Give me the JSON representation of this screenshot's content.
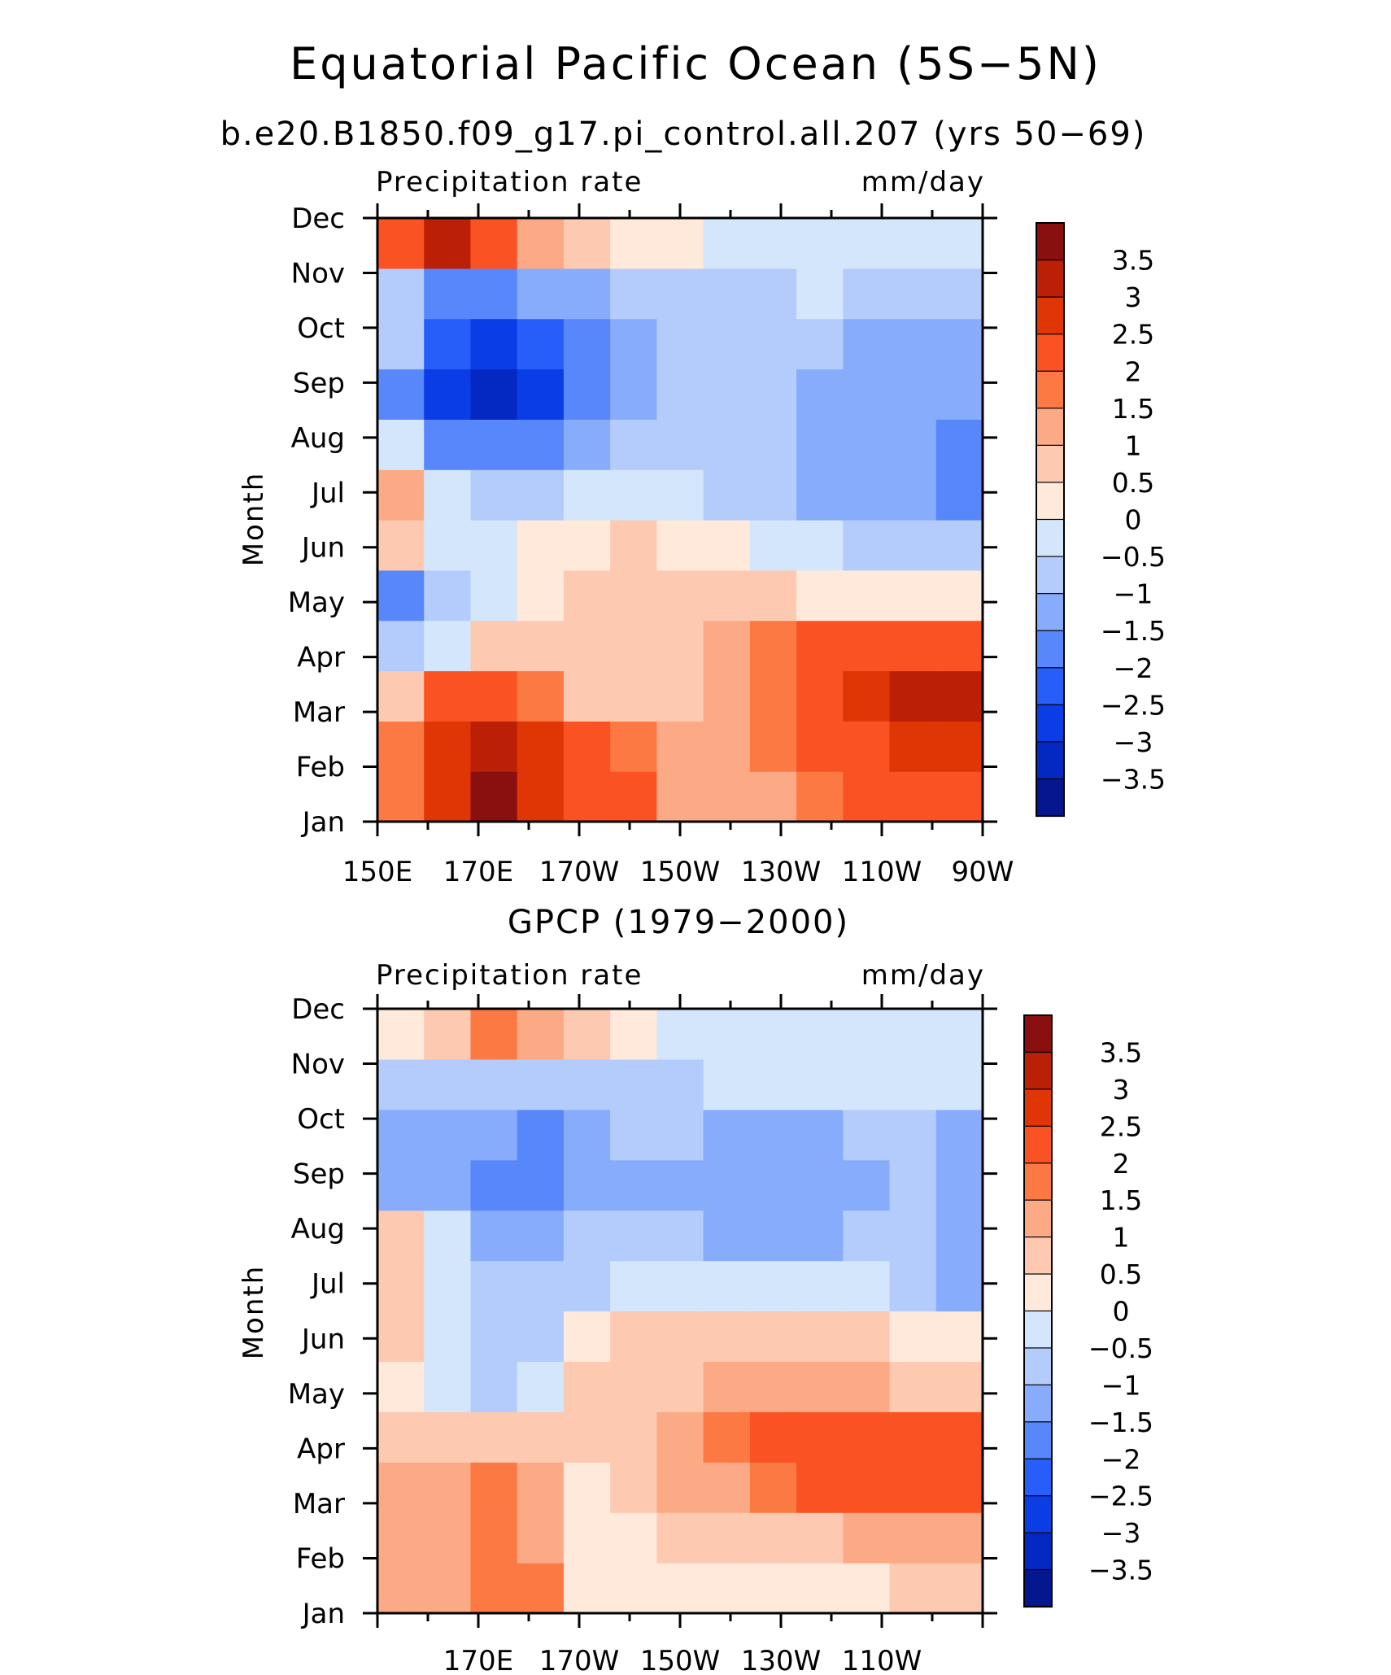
{
  "figure": {
    "title": "Equatorial Pacific Ocean (5S−5N)"
  },
  "scale": {
    "levels": [
      "3.5",
      "3",
      "2.5",
      "2",
      "1.5",
      "1",
      "0.5",
      "0",
      "−0.5",
      "−1",
      "−1.5",
      "−2",
      "−2.5",
      "−3",
      "−3.5"
    ],
    "colors": [
      "#8a0f0f",
      "#bb1f06",
      "#e03606",
      "#fb5223",
      "#fc7944",
      "#fcaa85",
      "#fdcab1",
      "#fee9da",
      "#d4e6fc",
      "#b4ccfc",
      "#88acfc",
      "#5787fa",
      "#275df8",
      "#0a3de6",
      "#0429c2",
      "#05178f"
    ]
  },
  "chart_data": [
    {
      "type": "heatmap",
      "subtitle": "b.e20.B1850.f09_g17.pi_control.all.207 (yrs 50−69)",
      "left_label": "Precipitation rate",
      "right_label": "mm/day",
      "ylabel": "Month",
      "x_tick_labels": [
        "150E",
        "170E",
        "170W",
        "150W",
        "130W",
        "110W",
        "90W"
      ],
      "y_tick_labels": [
        "Jan",
        "Feb",
        "Mar",
        "Apr",
        "May",
        "Jun",
        "Jul",
        "Aug",
        "Sep",
        "Oct",
        "Nov",
        "Dec"
      ],
      "x_range": [
        "150E",
        "90W"
      ],
      "colorbar": "right",
      "x": [
        150,
        160,
        170,
        180,
        190,
        200,
        210,
        220,
        230,
        240,
        250,
        260,
        270
      ],
      "y": [
        "Jan",
        "Feb",
        "Mar",
        "Apr",
        "May",
        "Jun",
        "Jul",
        "Aug",
        "Sep",
        "Oct",
        "Nov",
        "Dec"
      ],
      "z": [
        [
          1.5,
          2.5,
          3.5,
          2.5,
          2,
          2,
          1,
          1,
          1,
          1.5,
          2,
          2,
          2
        ],
        [
          1.5,
          2.5,
          3,
          2.5,
          2,
          1.5,
          1,
          1,
          1.5,
          2,
          2,
          2.5,
          2.5
        ],
        [
          0.5,
          2,
          2,
          1.5,
          0.5,
          0.5,
          0.5,
          1,
          1.5,
          2,
          2.5,
          3,
          3
        ],
        [
          -1,
          -0.5,
          0.5,
          0.5,
          0.5,
          0.5,
          0.5,
          1,
          1.5,
          2,
          2,
          2,
          2
        ],
        [
          -2,
          -1,
          -0.5,
          0,
          0.5,
          0.5,
          0.5,
          0.5,
          0.5,
          0,
          0,
          0,
          0
        ],
        [
          0.5,
          -0.5,
          -0.5,
          0,
          0,
          0.5,
          0,
          0,
          -0.5,
          -0.5,
          -1,
          -1,
          -1
        ],
        [
          1,
          -0.5,
          -1,
          -1,
          -0.5,
          -0.5,
          -0.5,
          -1,
          -1,
          -1.5,
          -1.5,
          -1.5,
          -2
        ],
        [
          -0.5,
          -2,
          -2,
          -2,
          -1.5,
          -1,
          -1,
          -1,
          -1,
          -1.5,
          -1.5,
          -1.5,
          -2
        ],
        [
          -2,
          -3,
          -3.5,
          -3,
          -2,
          -1.5,
          -1,
          -1,
          -1,
          -1.5,
          -1.5,
          -1.5,
          -1.5
        ],
        [
          -1,
          -2.5,
          -3,
          -2.5,
          -2,
          -1.5,
          -1,
          -1,
          -1,
          -1,
          -1.5,
          -1.5,
          -1.5
        ],
        [
          -1,
          -2,
          -2,
          -1.5,
          -1.5,
          -1,
          -1,
          -1,
          -1,
          -0.5,
          -1,
          -1,
          -1
        ],
        [
          2,
          3,
          2,
          1,
          0.5,
          0,
          0,
          -0.5,
          -0.5,
          -0.5,
          -0.5,
          -0.5,
          -0.5
        ]
      ]
    },
    {
      "type": "heatmap",
      "subtitle": "GPCP (1979−2000)",
      "left_label": "Precipitation rate",
      "right_label": "mm/day",
      "ylabel": "Month",
      "x_tick_labels": [
        "170E",
        "170W",
        "150W",
        "130W",
        "110W"
      ],
      "y_tick_labels": [
        "Jan",
        "Feb",
        "Mar",
        "Apr",
        "May",
        "Jun",
        "Jul",
        "Aug",
        "Sep",
        "Oct",
        "Nov",
        "Dec"
      ],
      "x_range": [
        "150E",
        "90W"
      ],
      "colorbar": "right",
      "x": [
        150,
        160,
        170,
        180,
        190,
        200,
        210,
        220,
        230,
        240,
        250,
        260,
        270
      ],
      "y": [
        "Jan",
        "Feb",
        "Mar",
        "Apr",
        "May",
        "Jun",
        "Jul",
        "Aug",
        "Sep",
        "Oct",
        "Nov",
        "Dec"
      ],
      "z": [
        [
          1,
          1,
          1.5,
          1.5,
          0,
          0,
          0,
          0,
          0,
          0,
          0,
          0.5,
          0.5
        ],
        [
          1,
          1,
          1.5,
          1,
          0,
          0,
          0.5,
          0.5,
          0.5,
          0.5,
          1,
          1,
          1
        ],
        [
          1,
          1,
          1.5,
          1,
          0,
          0.5,
          1,
          1,
          1.5,
          2,
          2,
          2,
          2
        ],
        [
          0.5,
          0.5,
          0.5,
          0.5,
          0.5,
          0.5,
          1,
          1.5,
          2,
          2,
          2,
          2,
          2
        ],
        [
          0,
          -0.5,
          -1,
          -0.5,
          0.5,
          0.5,
          0.5,
          1,
          1,
          1,
          1,
          0.5,
          0.5
        ],
        [
          0.5,
          -0.5,
          -1,
          -1,
          0,
          0.5,
          0.5,
          0.5,
          0.5,
          0.5,
          0.5,
          0,
          0
        ],
        [
          0.5,
          -0.5,
          -1,
          -1,
          -1,
          -0.5,
          -0.5,
          -0.5,
          -0.5,
          -0.5,
          -0.5,
          -1,
          -1.5
        ],
        [
          0.5,
          -0.5,
          -1.5,
          -1.5,
          -1,
          -1,
          -1,
          -1.5,
          -1.5,
          -1.5,
          -1,
          -1,
          -1.5
        ],
        [
          -1.5,
          -1.5,
          -2,
          -2,
          -1.5,
          -1.5,
          -1.5,
          -1.5,
          -1.5,
          -1.5,
          -1.5,
          -1,
          -1.5
        ],
        [
          -1.5,
          -1.5,
          -1.5,
          -2,
          -1.5,
          -1,
          -1,
          -1.5,
          -1.5,
          -1.5,
          -1,
          -1,
          -1.5
        ],
        [
          -1,
          -1,
          -1,
          -1,
          -1,
          -1,
          -1,
          -0.5,
          -0.5,
          -0.5,
          -0.5,
          -0.5,
          -0.5
        ],
        [
          0,
          0.5,
          1.5,
          1,
          0.5,
          0,
          -0.5,
          -0.5,
          -0.5,
          -0.5,
          -0.5,
          -0.5,
          -0.5
        ]
      ]
    }
  ]
}
